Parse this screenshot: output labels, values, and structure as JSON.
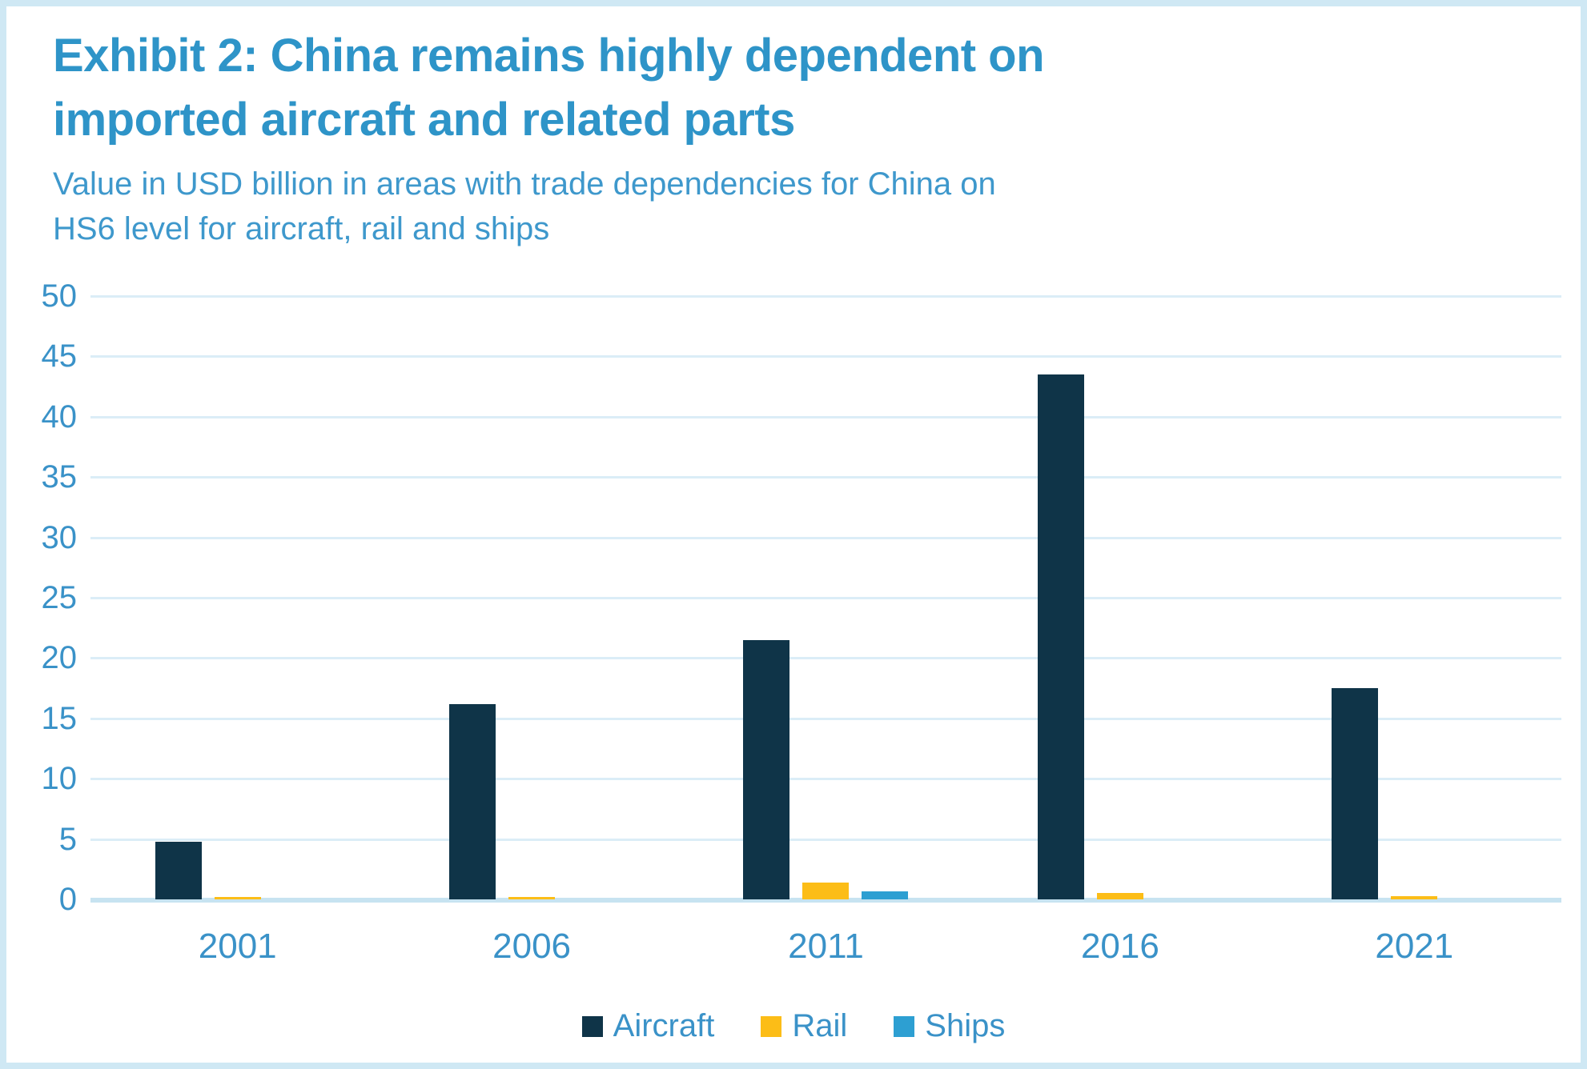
{
  "page": {
    "title_lines": [
      "Exhibit 2: China remains highly dependent on",
      "imported aircraft and related parts"
    ],
    "subtitle_lines": [
      "Value in USD billion in areas with trade dependencies for China on",
      "HS6 level for aircraft, rail and ships"
    ]
  },
  "colors": {
    "page_border": "#cfe8f4",
    "background": "#ffffff",
    "title_text": "#2e94c8",
    "subtitle_text": "#3e98cc",
    "axis_text": "#3a92c8",
    "gridline": "#dbedf7",
    "axis_baseline": "#c7e3f1"
  },
  "chart_data": {
    "type": "bar",
    "title": "Exhibit 2: China remains highly dependent on imported aircraft and related parts",
    "subtitle": "Value in USD billion in areas with trade dependencies for China on HS6 level for aircraft, rail and ships",
    "categories": [
      "2001",
      "2006",
      "2011",
      "2016",
      "2021"
    ],
    "series": [
      {
        "name": "Aircraft",
        "color": "#0f3448",
        "values": [
          4.8,
          16.2,
          21.5,
          43.5,
          17.5
        ]
      },
      {
        "name": "Rail",
        "color": "#fcbd17",
        "values": [
          0.2,
          0.2,
          1.4,
          0.5,
          0.25
        ]
      },
      {
        "name": "Ships",
        "color": "#2d9fd2",
        "values": [
          0,
          0,
          0.65,
          0,
          0
        ]
      }
    ],
    "xlabel": "",
    "ylabel": "",
    "ylim": [
      0,
      50
    ],
    "yticks": [
      0,
      5,
      10,
      15,
      20,
      25,
      30,
      35,
      40,
      45,
      50
    ],
    "grid": "horizontal",
    "legend_position": "bottom"
  }
}
